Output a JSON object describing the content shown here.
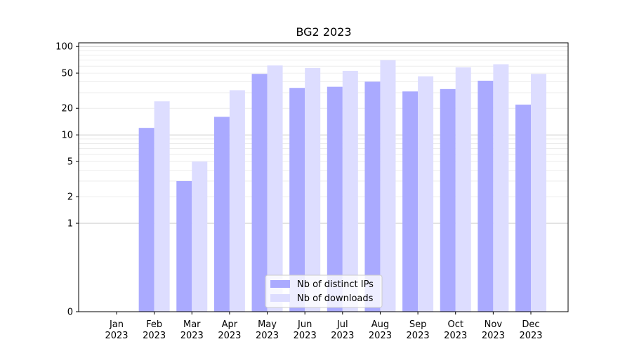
{
  "chart_data": {
    "type": "bar",
    "title": "BG2 2023",
    "xlabel": "",
    "ylabel": "",
    "yscale": "symlog",
    "ylim": [
      0,
      110
    ],
    "yticks": [
      0,
      1,
      2,
      5,
      10,
      20,
      50,
      100
    ],
    "grid": "horizontal",
    "legend_position": "bottom-center",
    "categories": [
      [
        "Jan",
        "2023"
      ],
      [
        "Feb",
        "2023"
      ],
      [
        "Mar",
        "2023"
      ],
      [
        "Apr",
        "2023"
      ],
      [
        "May",
        "2023"
      ],
      [
        "Jun",
        "2023"
      ],
      [
        "Jul",
        "2023"
      ],
      [
        "Aug",
        "2023"
      ],
      [
        "Sep",
        "2023"
      ],
      [
        "Oct",
        "2023"
      ],
      [
        "Nov",
        "2023"
      ],
      [
        "Dec",
        "2023"
      ]
    ],
    "series": [
      {
        "name": "Nb of distinct IPs",
        "color": "#aaaaff",
        "values": [
          0,
          12,
          3,
          16,
          49,
          34,
          35,
          40,
          31,
          33,
          41,
          22
        ]
      },
      {
        "name": "Nb of downloads",
        "color": "#ddddff",
        "values": [
          0,
          24,
          5,
          32,
          61,
          57,
          53,
          70,
          46,
          58,
          63,
          49
        ]
      }
    ]
  }
}
